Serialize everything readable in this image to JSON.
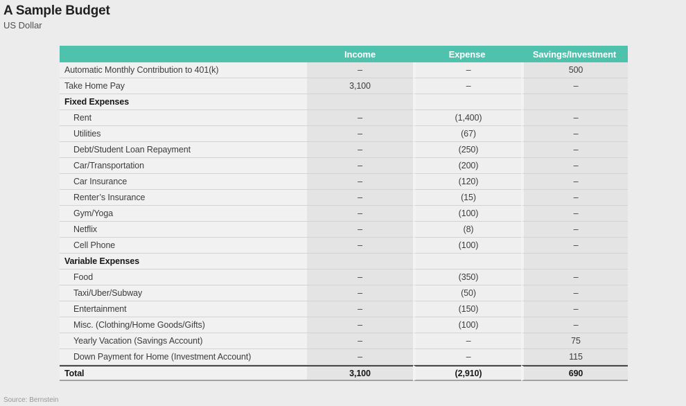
{
  "colors": {
    "accent_teal": "#4fc2ae",
    "page_background": "#ececec",
    "shaded_column": "#e4e4e4",
    "light_cell": "#f1f1f1"
  },
  "chart_data": {
    "type": "table",
    "title": "A Sample Budget",
    "subtitle": "US Dollar",
    "source": "Source: Bernstein",
    "columns": [
      "",
      "Income",
      "Expense",
      "Savings/Investment"
    ],
    "rows": [
      {
        "type": "top",
        "label": "Automatic Monthly Contribution to 401(k)",
        "income": "–",
        "expense": "–",
        "savings": "500"
      },
      {
        "type": "top",
        "label": "Take Home Pay",
        "income": "3,100",
        "expense": "–",
        "savings": "–"
      },
      {
        "type": "section",
        "label": "Fixed Expenses",
        "income": "",
        "expense": "",
        "savings": ""
      },
      {
        "type": "sub",
        "label": "Rent",
        "income": "–",
        "expense": "(1,400)",
        "savings": "–"
      },
      {
        "type": "sub",
        "label": "Utilities",
        "income": "–",
        "expense": "(67)",
        "savings": "–"
      },
      {
        "type": "sub",
        "label": "Debt/Student Loan Repayment",
        "income": "–",
        "expense": "(250)",
        "savings": "–"
      },
      {
        "type": "sub",
        "label": "Car/Transportation",
        "income": "–",
        "expense": "(200)",
        "savings": "–"
      },
      {
        "type": "sub",
        "label": "Car Insurance",
        "income": "–",
        "expense": "(120)",
        "savings": "–"
      },
      {
        "type": "sub",
        "label": "Renter’s Insurance",
        "income": "–",
        "expense": "(15)",
        "savings": "–"
      },
      {
        "type": "sub",
        "label": "Gym/Yoga",
        "income": "–",
        "expense": "(100)",
        "savings": "–"
      },
      {
        "type": "sub",
        "label": "Netflix",
        "income": "–",
        "expense": "(8)",
        "savings": "–"
      },
      {
        "type": "sub",
        "label": "Cell Phone",
        "income": "–",
        "expense": "(100)",
        "savings": "–"
      },
      {
        "type": "section",
        "label": "Variable Expenses",
        "income": "",
        "expense": "",
        "savings": ""
      },
      {
        "type": "sub",
        "label": "Food",
        "income": "–",
        "expense": "(350)",
        "savings": "–"
      },
      {
        "type": "sub",
        "label": "Taxi/Uber/Subway",
        "income": "–",
        "expense": "(50)",
        "savings": "–"
      },
      {
        "type": "sub",
        "label": "Entertainment",
        "income": "–",
        "expense": "(150)",
        "savings": "–"
      },
      {
        "type": "sub",
        "label": "Misc. (Clothing/Home Goods/Gifts)",
        "income": "–",
        "expense": "(100)",
        "savings": "–"
      },
      {
        "type": "sub",
        "label": "Yearly Vacation (Savings Account)",
        "income": "–",
        "expense": "–",
        "savings": "75"
      },
      {
        "type": "sub",
        "label": "Down Payment for Home (Investment Account)",
        "income": "–",
        "expense": "–",
        "savings": "115"
      },
      {
        "type": "total",
        "label": "Total",
        "income": "3,100",
        "expense": "(2,910)",
        "savings": "690"
      }
    ]
  }
}
